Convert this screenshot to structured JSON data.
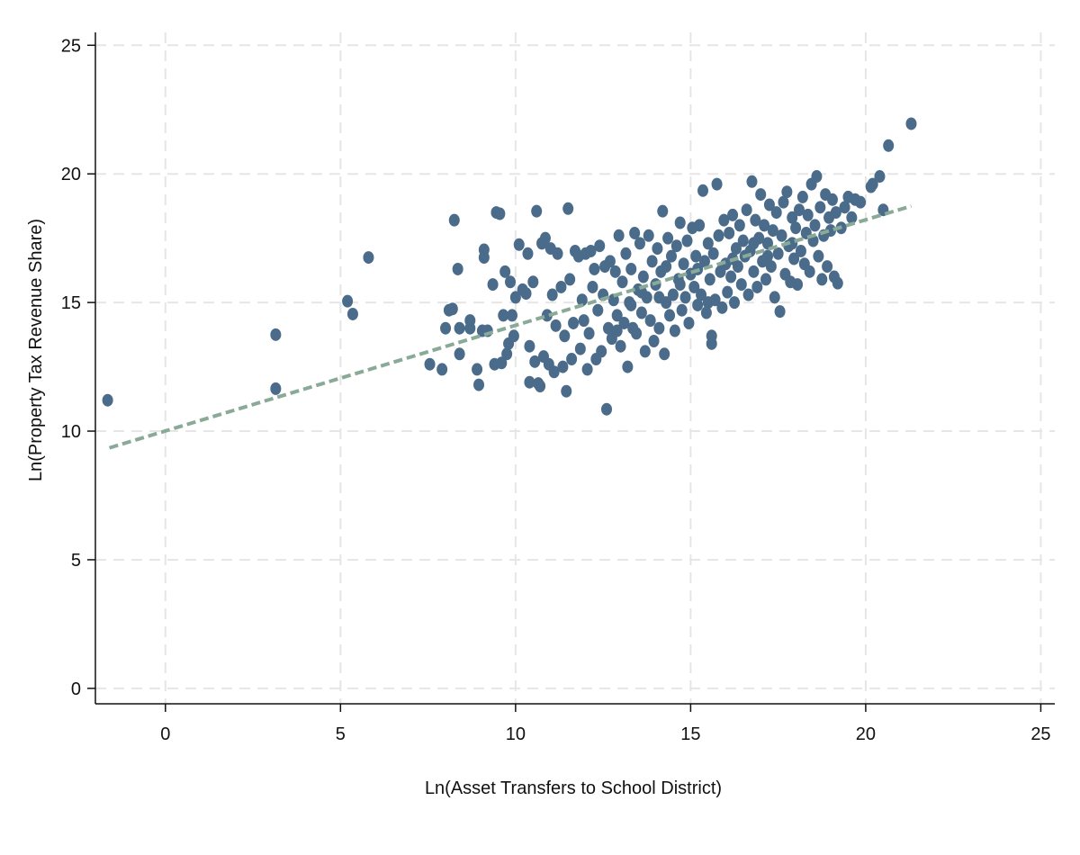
{
  "chart_data": {
    "type": "scatter",
    "xlabel": "Ln(Asset Transfers to School District)",
    "ylabel": "Ln(Property Tax Revenue Share)",
    "xlim": [
      -2,
      25.4
    ],
    "ylim": [
      -0.6,
      25.5
    ],
    "xticks": [
      0,
      5,
      10,
      15,
      20,
      25
    ],
    "yticks": [
      0,
      5,
      10,
      15,
      20,
      25
    ],
    "grid": true,
    "colors": {
      "points": "#4a6b8a",
      "fit_line": "#8aaa98",
      "grid": "#e6e6e6",
      "axis": "#111111"
    },
    "fit_line": {
      "x": [
        -1.6,
        21.3
      ],
      "y": [
        9.35,
        18.75
      ],
      "style": "dashed"
    },
    "series": [
      {
        "points": [
          [
            -1.65,
            11.2
          ],
          [
            3.15,
            13.75
          ],
          [
            3.15,
            11.65
          ],
          [
            5.2,
            15.05
          ],
          [
            5.35,
            14.55
          ],
          [
            5.8,
            16.75
          ],
          [
            7.55,
            12.6
          ],
          [
            7.9,
            12.4
          ],
          [
            8.0,
            14.0
          ],
          [
            8.1,
            14.7
          ],
          [
            8.2,
            14.75
          ],
          [
            8.25,
            18.2
          ],
          [
            8.35,
            16.3
          ],
          [
            8.4,
            14.0
          ],
          [
            8.4,
            13.0
          ],
          [
            8.7,
            14.3
          ],
          [
            8.7,
            14.0
          ],
          [
            8.9,
            12.4
          ],
          [
            8.95,
            11.8
          ],
          [
            9.05,
            13.9
          ],
          [
            9.1,
            17.05
          ],
          [
            9.1,
            16.75
          ],
          [
            9.2,
            13.9
          ],
          [
            9.35,
            15.7
          ],
          [
            9.4,
            12.6
          ],
          [
            9.45,
            18.5
          ],
          [
            9.55,
            18.45
          ],
          [
            9.6,
            12.65
          ],
          [
            9.65,
            14.5
          ],
          [
            9.7,
            16.2
          ],
          [
            9.75,
            13.0
          ],
          [
            9.8,
            13.4
          ],
          [
            9.85,
            15.8
          ],
          [
            9.9,
            14.5
          ],
          [
            9.95,
            13.7
          ],
          [
            10.0,
            15.2
          ],
          [
            10.1,
            17.25
          ],
          [
            10.2,
            15.5
          ],
          [
            10.3,
            15.35
          ],
          [
            10.35,
            16.9
          ],
          [
            10.4,
            13.3
          ],
          [
            10.4,
            11.9
          ],
          [
            10.5,
            15.8
          ],
          [
            10.55,
            12.7
          ],
          [
            10.6,
            18.55
          ],
          [
            10.65,
            11.85
          ],
          [
            10.7,
            11.75
          ],
          [
            10.75,
            17.3
          ],
          [
            10.8,
            12.9
          ],
          [
            10.85,
            17.5
          ],
          [
            10.9,
            14.5
          ],
          [
            10.95,
            12.6
          ],
          [
            11.0,
            17.1
          ],
          [
            11.05,
            15.3
          ],
          [
            11.1,
            12.3
          ],
          [
            11.15,
            14.1
          ],
          [
            11.2,
            16.9
          ],
          [
            11.3,
            15.6
          ],
          [
            11.35,
            12.5
          ],
          [
            11.4,
            13.7
          ],
          [
            11.45,
            11.55
          ],
          [
            11.5,
            18.65
          ],
          [
            11.55,
            15.9
          ],
          [
            11.6,
            12.8
          ],
          [
            11.65,
            14.2
          ],
          [
            11.7,
            17.0
          ],
          [
            11.8,
            16.8
          ],
          [
            11.85,
            13.2
          ],
          [
            11.9,
            15.1
          ],
          [
            11.95,
            14.3
          ],
          [
            12.0,
            16.9
          ],
          [
            12.05,
            12.4
          ],
          [
            12.1,
            13.8
          ],
          [
            12.15,
            17.0
          ],
          [
            12.2,
            15.6
          ],
          [
            12.25,
            16.3
          ],
          [
            12.3,
            12.8
          ],
          [
            12.35,
            14.7
          ],
          [
            12.4,
            17.2
          ],
          [
            12.45,
            13.1
          ],
          [
            12.5,
            15.3
          ],
          [
            12.55,
            16.4
          ],
          [
            12.6,
            10.85
          ],
          [
            12.65,
            14.0
          ],
          [
            12.7,
            16.6
          ],
          [
            12.75,
            13.6
          ],
          [
            12.8,
            15.1
          ],
          [
            12.85,
            16.2
          ],
          [
            12.9,
            14.5
          ],
          [
            12.95,
            17.6
          ],
          [
            13.0,
            13.3
          ],
          [
            13.05,
            15.8
          ],
          [
            13.1,
            14.2
          ],
          [
            13.15,
            16.9
          ],
          [
            13.2,
            12.5
          ],
          [
            13.25,
            15.0
          ],
          [
            13.3,
            16.3
          ],
          [
            13.35,
            14.0
          ],
          [
            13.4,
            17.7
          ],
          [
            13.45,
            13.8
          ],
          [
            13.5,
            15.5
          ],
          [
            13.55,
            17.3
          ],
          [
            13.6,
            14.6
          ],
          [
            13.65,
            16.0
          ],
          [
            13.7,
            13.1
          ],
          [
            13.75,
            15.2
          ],
          [
            13.8,
            17.6
          ],
          [
            13.85,
            14.3
          ],
          [
            13.9,
            16.6
          ],
          [
            13.95,
            13.5
          ],
          [
            14.0,
            15.7
          ],
          [
            14.05,
            17.1
          ],
          [
            14.1,
            14.0
          ],
          [
            14.15,
            16.2
          ],
          [
            14.2,
            18.55
          ],
          [
            14.25,
            13.0
          ],
          [
            14.3,
            15.0
          ],
          [
            14.35,
            17.5
          ],
          [
            14.4,
            14.5
          ],
          [
            14.45,
            16.8
          ],
          [
            14.5,
            15.3
          ],
          [
            14.55,
            13.9
          ],
          [
            14.6,
            17.2
          ],
          [
            14.65,
            15.9
          ],
          [
            14.7,
            18.1
          ],
          [
            14.75,
            14.7
          ],
          [
            14.8,
            16.5
          ],
          [
            14.85,
            15.2
          ],
          [
            14.9,
            17.4
          ],
          [
            14.95,
            14.2
          ],
          [
            15.0,
            16.1
          ],
          [
            15.05,
            17.9
          ],
          [
            15.1,
            15.6
          ],
          [
            15.15,
            16.8
          ],
          [
            15.2,
            14.9
          ],
          [
            15.25,
            18.0
          ],
          [
            15.3,
            15.3
          ],
          [
            15.35,
            19.35
          ],
          [
            15.4,
            16.6
          ],
          [
            15.45,
            14.6
          ],
          [
            15.5,
            17.3
          ],
          [
            15.55,
            15.9
          ],
          [
            15.6,
            13.7
          ],
          [
            15.6,
            13.4
          ],
          [
            15.65,
            16.9
          ],
          [
            15.7,
            15.1
          ],
          [
            15.75,
            19.6
          ],
          [
            15.8,
            17.6
          ],
          [
            15.85,
            16.2
          ],
          [
            15.9,
            14.8
          ],
          [
            15.95,
            18.2
          ],
          [
            16.0,
            16.5
          ],
          [
            16.05,
            15.4
          ],
          [
            16.1,
            17.7
          ],
          [
            16.15,
            16.0
          ],
          [
            16.2,
            18.4
          ],
          [
            16.25,
            15.0
          ],
          [
            16.3,
            17.1
          ],
          [
            16.35,
            16.4
          ],
          [
            16.4,
            18.0
          ],
          [
            16.45,
            15.7
          ],
          [
            16.5,
            17.4
          ],
          [
            16.55,
            16.8
          ],
          [
            16.6,
            18.6
          ],
          [
            16.65,
            15.3
          ],
          [
            16.7,
            17.0
          ],
          [
            16.75,
            19.7
          ],
          [
            16.8,
            16.2
          ],
          [
            16.85,
            18.2
          ],
          [
            16.9,
            15.6
          ],
          [
            16.95,
            17.5
          ],
          [
            17.0,
            19.2
          ],
          [
            17.05,
            16.6
          ],
          [
            17.1,
            18.0
          ],
          [
            17.15,
            15.9
          ],
          [
            17.2,
            17.3
          ],
          [
            17.25,
            18.8
          ],
          [
            17.3,
            16.4
          ],
          [
            17.35,
            17.8
          ],
          [
            17.4,
            15.2
          ],
          [
            17.45,
            18.5
          ],
          [
            17.5,
            16.9
          ],
          [
            17.55,
            14.65
          ],
          [
            17.6,
            17.6
          ],
          [
            17.65,
            18.9
          ],
          [
            17.7,
            16.1
          ],
          [
            17.75,
            19.3
          ],
          [
            17.8,
            17.2
          ],
          [
            17.85,
            15.8
          ],
          [
            17.9,
            18.3
          ],
          [
            17.95,
            16.7
          ],
          [
            18.0,
            17.9
          ],
          [
            18.05,
            15.7
          ],
          [
            18.1,
            18.6
          ],
          [
            18.15,
            17.0
          ],
          [
            18.2,
            19.1
          ],
          [
            18.25,
            16.5
          ],
          [
            18.3,
            17.7
          ],
          [
            18.35,
            18.4
          ],
          [
            18.4,
            16.2
          ],
          [
            18.45,
            19.6
          ],
          [
            18.5,
            17.4
          ],
          [
            18.55,
            18.0
          ],
          [
            18.6,
            19.9
          ],
          [
            18.65,
            16.8
          ],
          [
            18.7,
            18.7
          ],
          [
            18.75,
            15.9
          ],
          [
            18.8,
            17.6
          ],
          [
            18.85,
            19.2
          ],
          [
            18.9,
            16.4
          ],
          [
            18.95,
            18.3
          ],
          [
            19.0,
            17.8
          ],
          [
            19.05,
            19.0
          ],
          [
            19.1,
            16.0
          ],
          [
            19.15,
            18.5
          ],
          [
            19.2,
            15.75
          ],
          [
            19.3,
            17.9
          ],
          [
            19.4,
            18.7
          ],
          [
            19.5,
            19.1
          ],
          [
            19.6,
            18.3
          ],
          [
            19.7,
            19.0
          ],
          [
            19.85,
            18.9
          ],
          [
            20.15,
            19.5
          ],
          [
            20.2,
            19.6
          ],
          [
            20.4,
            19.9
          ],
          [
            20.5,
            18.6
          ],
          [
            20.65,
            21.1
          ],
          [
            21.3,
            21.95
          ],
          [
            14.1,
            15.2
          ],
          [
            14.3,
            16.4
          ],
          [
            15.2,
            16.3
          ],
          [
            15.5,
            15.0
          ],
          [
            16.2,
            16.7
          ],
          [
            16.8,
            17.3
          ],
          [
            17.2,
            16.8
          ],
          [
            17.9,
            17.3
          ],
          [
            13.3,
            14.9
          ],
          [
            13.6,
            15.4
          ],
          [
            12.9,
            13.9
          ],
          [
            14.7,
            15.7
          ]
        ]
      }
    ]
  }
}
